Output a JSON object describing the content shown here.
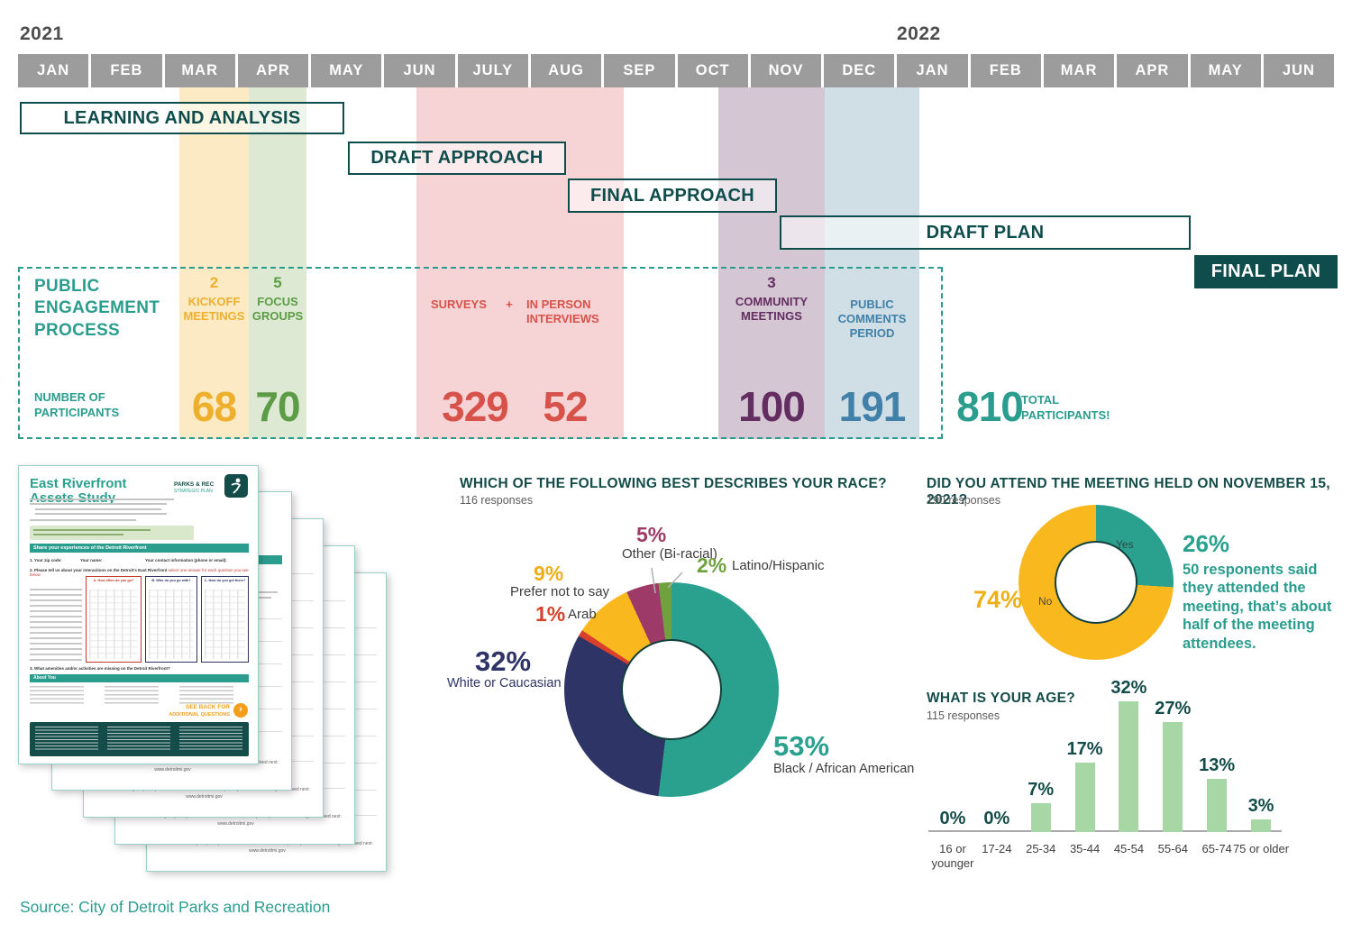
{
  "timeline": {
    "years": [
      {
        "label": "2021"
      },
      {
        "label": "2022"
      }
    ],
    "months": [
      "JAN",
      "FEB",
      "MAR",
      "APR",
      "MAY",
      "JUN",
      "JULY",
      "AUG",
      "SEP",
      "OCT",
      "NOV",
      "DEC",
      "JAN",
      "FEB",
      "MAR",
      "APR",
      "MAY",
      "JUN"
    ],
    "phases": {
      "learning": {
        "label": "LEARNING AND ANALYSIS"
      },
      "draft_approach": {
        "label": "DRAFT APPROACH"
      },
      "final_approach": {
        "label": "FINAL APPROACH"
      },
      "draft_plan": {
        "label": "DRAFT PLAN"
      },
      "final_plan": {
        "label": "FINAL PLAN"
      }
    }
  },
  "engagement": {
    "title": "PUBLIC ENGAGEMENT PROCESS",
    "participants_label": "NUMBER OF PARTICIPANTS",
    "kickoff": {
      "count": "2",
      "label": "KICKOFF MEETINGS",
      "value": "68",
      "color": "#eeaf2d"
    },
    "focus": {
      "count": "5",
      "label": "FOCUS GROUPS",
      "value": "70",
      "color": "#5d9c47"
    },
    "surveys": {
      "label": "SURVEYS",
      "plus": "+",
      "value": "329",
      "color": "#d7524a"
    },
    "interviews": {
      "label": "IN PERSON INTERVIEWS",
      "value": "52",
      "color": "#d7524a"
    },
    "community": {
      "count": "3",
      "label": "COMMUNITY MEETINGS",
      "value": "100",
      "color": "#632d61"
    },
    "comments": {
      "label": "PUBLIC COMMENTS PERIOD",
      "value": "191",
      "color": "#4181a9"
    },
    "total": {
      "value": "810",
      "label": "TOTAL PARTICIPANTS!"
    }
  },
  "chart_data": [
    {
      "type": "pie",
      "donut": true,
      "title": "WHICH OF THE FOLLOWING BEST DESCRIBES YOUR RACE?",
      "subtitle": "116 responses",
      "slices": [
        {
          "label": "Black / African American",
          "value": 53,
          "color": "#2aa08f"
        },
        {
          "label": "White or Caucasian",
          "value": 32,
          "color": "#2e3466"
        },
        {
          "label": "Arab",
          "value": 1,
          "color": "#d8402c"
        },
        {
          "label": "Prefer not to say",
          "value": 9,
          "color": "#f8b81e"
        },
        {
          "label": "Other (Bi-racial)",
          "value": 5,
          "color": "#9e3a67"
        },
        {
          "label": "Latino/Hispanic",
          "value": 2,
          "color": "#6fa23e"
        }
      ]
    },
    {
      "type": "pie",
      "donut": true,
      "title": "DID YOU ATTEND THE MEETING HELD ON NOVEMBER 15, 2021?",
      "subtitle": "190 responses",
      "slices": [
        {
          "label": "Yes",
          "value": 26,
          "color": "#2aa08f"
        },
        {
          "label": "No",
          "value": 74,
          "color": "#f8b81e"
        }
      ],
      "note": "50 responents said they attended the meeting, that’s about half of the meeting attendees."
    },
    {
      "type": "bar",
      "title": "WHAT IS YOUR AGE?",
      "subtitle": "115 responses",
      "categories": [
        "16 or younger",
        "17-24",
        "25-34",
        "35-44",
        "45-54",
        "55-64",
        "65-74",
        "75 or older"
      ],
      "values": [
        0,
        0,
        7,
        17,
        32,
        27,
        13,
        3
      ],
      "unit": "%",
      "bar_color": "#a7d7a4",
      "ylim": [
        0,
        32
      ],
      "grid": false
    }
  ],
  "race_labels": {
    "p53": "53%",
    "l53": "Black / African American",
    "p32": "32%",
    "l32": "White or Caucasian",
    "p9": "9%",
    "l9": "Prefer not to say",
    "p5": "5%",
    "l5": "Other (Bi-racial)",
    "p2": "2%",
    "l2": "Latino/Hispanic",
    "p1": "1%",
    "l1": "Arab"
  },
  "attend_labels": {
    "yes": "Yes",
    "no": "No",
    "pct_yes": "26%",
    "pct_no": "74%"
  },
  "survey": {
    "title": "East Riverfront Assets Study",
    "logo_line1": "PARKS & REC",
    "logo_line2": "STRATEGIC PLAN",
    "form_zip": "1. Your zip code:",
    "form_name": "Your name:",
    "form_contact": "Your contact information (phone or email):",
    "banner": "Share your experiences of the Detroit Riverfront",
    "q2_dark": "2. Please tell us about your interactions on the Detroit's East Riverfront ",
    "q2_red": "select one answer for each question you see below",
    "col_a": "A. How often do you go?",
    "col_b": "B. Who do you go with?",
    "col_c": "C. How do you get there?",
    "q3": "3. What amenities and/or activities are missing on the Detroit Riverfront?",
    "about_banner": "About You",
    "see_back_1": "SEE BACK FOR",
    "see_back_2": "ADDITIONAL QUESTIONS",
    "arrow": "›",
    "thanks_bold": "THANK YOU",
    "thanks_rest": " for your participation! Please visit our website for plan updates and how to get involved next:",
    "thanks_url": "www.detroitmi.gov"
  },
  "source": "Source: City of Detroit Parks and Recreation"
}
